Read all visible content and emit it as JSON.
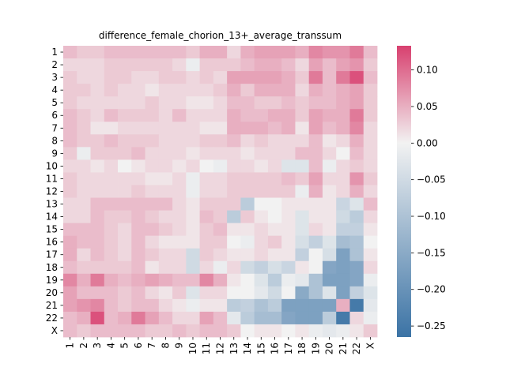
{
  "chart_data": {
    "type": "heatmap",
    "title": "difference_female_chorion_13+_average_transsum",
    "rows": [
      "1",
      "2",
      "3",
      "4",
      "5",
      "6",
      "7",
      "8",
      "9",
      "10",
      "11",
      "12",
      "13",
      "14",
      "15",
      "16",
      "17",
      "18",
      "19",
      "20",
      "21",
      "22",
      "X"
    ],
    "cols": [
      "1",
      "2",
      "3",
      "4",
      "5",
      "6",
      "7",
      "8",
      "9",
      "10",
      "11",
      "12",
      "13",
      "14",
      "15",
      "16",
      "17",
      "18",
      "19",
      "20",
      "21",
      "22",
      "X"
    ],
    "values": [
      [
        0.04,
        0.03,
        0.03,
        0.04,
        0.04,
        0.04,
        0.04,
        0.04,
        0.04,
        0.03,
        0.05,
        0.05,
        0.02,
        0.05,
        0.06,
        0.06,
        0.06,
        0.05,
        0.08,
        0.07,
        0.07,
        0.09,
        0.04
      ],
      [
        0.02,
        0.02,
        0.02,
        0.03,
        0.03,
        0.03,
        0.03,
        0.03,
        0.02,
        -0.01,
        0.03,
        0.03,
        0.03,
        0.04,
        0.05,
        0.05,
        0.04,
        0.02,
        0.06,
        0.04,
        0.06,
        0.07,
        0.03
      ],
      [
        0.03,
        0.02,
        0.02,
        0.03,
        0.03,
        0.02,
        0.02,
        0.03,
        0.03,
        0.02,
        0.03,
        0.02,
        0.06,
        0.06,
        0.06,
        0.06,
        0.05,
        0.03,
        0.09,
        0.04,
        0.09,
        0.12,
        0.04
      ],
      [
        0.03,
        0.03,
        0.02,
        0.03,
        0.02,
        0.02,
        0.01,
        0.02,
        0.02,
        0.02,
        0.02,
        0.03,
        0.05,
        0.03,
        0.05,
        0.05,
        0.05,
        0.02,
        0.05,
        0.04,
        0.05,
        0.06,
        0.03
      ],
      [
        0.03,
        0.02,
        0.02,
        0.02,
        0.02,
        0.02,
        0.03,
        0.02,
        0.02,
        0.01,
        0.01,
        0.02,
        0.04,
        0.04,
        0.03,
        0.03,
        0.04,
        0.03,
        0.04,
        0.04,
        0.05,
        0.06,
        0.03
      ],
      [
        0.04,
        0.03,
        0.02,
        0.04,
        0.03,
        0.03,
        0.03,
        0.02,
        0.04,
        0.02,
        0.02,
        0.02,
        0.05,
        0.04,
        0.04,
        0.05,
        0.05,
        0.03,
        0.06,
        0.05,
        0.05,
        0.09,
        0.03
      ],
      [
        0.04,
        0.03,
        0.01,
        0.01,
        0.02,
        0.02,
        0.02,
        0.02,
        0.02,
        0.02,
        0.01,
        0.01,
        0.05,
        0.05,
        0.05,
        0.04,
        0.05,
        0.01,
        0.06,
        0.04,
        0.05,
        0.08,
        0.02
      ],
      [
        0.04,
        0.03,
        0.03,
        0.04,
        0.03,
        0.03,
        0.03,
        0.02,
        0.02,
        0.02,
        0.03,
        0.03,
        0.04,
        0.02,
        0.03,
        0.02,
        0.02,
        0.02,
        0.04,
        0.01,
        0.02,
        0.05,
        0.02
      ],
      [
        0.03,
        -0.01,
        0.03,
        0.03,
        0.03,
        0.04,
        0.02,
        0.02,
        0.02,
        0.01,
        0.02,
        0.02,
        0.02,
        0.01,
        0.02,
        0.02,
        0.02,
        0.04,
        0.04,
        0.02,
        0.0,
        0.04,
        0.02
      ],
      [
        0.02,
        0.02,
        0.01,
        0.02,
        0.0,
        0.01,
        0.02,
        0.02,
        0.01,
        0.02,
        0.0,
        -0.01,
        0.02,
        0.02,
        0.01,
        0.02,
        -0.03,
        -0.03,
        0.04,
        -0.01,
        0.02,
        0.03,
        0.02
      ],
      [
        0.03,
        0.02,
        0.02,
        0.02,
        0.02,
        0.02,
        0.01,
        0.01,
        0.02,
        -0.01,
        0.02,
        0.02,
        0.03,
        0.03,
        0.03,
        0.03,
        0.04,
        0.03,
        0.06,
        0.02,
        0.02,
        0.07,
        0.03
      ],
      [
        0.03,
        0.02,
        0.02,
        0.02,
        0.02,
        0.03,
        0.02,
        0.02,
        0.02,
        -0.01,
        0.02,
        0.02,
        0.03,
        0.03,
        0.03,
        0.03,
        0.03,
        -0.01,
        0.05,
        0.01,
        0.02,
        0.05,
        0.02
      ],
      [
        0.02,
        0.02,
        0.04,
        0.04,
        0.04,
        0.04,
        0.04,
        0.04,
        0.02,
        0.01,
        0.03,
        0.03,
        0.03,
        -0.08,
        0.0,
        0.0,
        0.01,
        0.01,
        0.01,
        0.01,
        -0.06,
        -0.03,
        0.04
      ],
      [
        0.02,
        0.02,
        0.04,
        0.03,
        0.03,
        0.04,
        0.03,
        0.02,
        0.02,
        0.01,
        0.04,
        0.03,
        -0.08,
        0.03,
        0.01,
        0.0,
        0.01,
        -0.03,
        0.01,
        0.01,
        -0.05,
        -0.08,
        0.02
      ],
      [
        0.04,
        0.04,
        0.04,
        0.03,
        0.02,
        0.04,
        0.04,
        0.03,
        0.02,
        0.01,
        0.03,
        0.04,
        0.01,
        0.01,
        0.02,
        0.01,
        0.01,
        -0.03,
        0.02,
        0.01,
        -0.07,
        -0.07,
        0.01
      ],
      [
        0.05,
        0.04,
        0.04,
        0.03,
        0.02,
        0.04,
        0.02,
        0.01,
        0.01,
        0.01,
        0.03,
        0.03,
        0.0,
        -0.01,
        0.02,
        0.03,
        0.01,
        -0.04,
        -0.07,
        -0.03,
        -0.11,
        -0.1,
        0.0
      ],
      [
        0.05,
        0.02,
        0.04,
        0.03,
        0.02,
        0.04,
        0.03,
        0.02,
        0.02,
        -0.05,
        0.03,
        0.02,
        0.01,
        0.01,
        0.02,
        0.01,
        0.01,
        -0.07,
        0.0,
        -0.04,
        -0.17,
        -0.1,
        0.01
      ],
      [
        0.04,
        0.03,
        0.03,
        0.03,
        0.03,
        0.04,
        0.01,
        0.02,
        0.02,
        -0.05,
        0.02,
        -0.01,
        0.02,
        -0.05,
        -0.07,
        -0.04,
        -0.06,
        0.01,
        0.0,
        -0.16,
        -0.17,
        -0.16,
        0.02
      ],
      [
        0.08,
        0.05,
        0.09,
        0.05,
        0.04,
        0.05,
        0.06,
        0.05,
        0.04,
        0.04,
        0.08,
        0.05,
        0.01,
        0.0,
        -0.03,
        -0.08,
        -0.01,
        -0.02,
        -0.1,
        -0.17,
        -0.17,
        -0.16,
        -0.01
      ],
      [
        0.06,
        0.04,
        0.04,
        0.04,
        0.03,
        0.04,
        0.02,
        0.01,
        0.03,
        -0.03,
        0.02,
        0.02,
        0.0,
        0.0,
        -0.02,
        -0.05,
        0.0,
        -0.15,
        -0.1,
        -0.03,
        -0.17,
        -0.07,
        -0.03
      ],
      [
        0.06,
        0.07,
        0.08,
        0.04,
        0.03,
        0.04,
        0.04,
        0.02,
        0.01,
        -0.01,
        0.01,
        0.01,
        -0.08,
        -0.07,
        -0.1,
        -0.08,
        -0.17,
        -0.17,
        -0.17,
        -0.17,
        0.05,
        -0.25,
        -0.02
      ],
      [
        0.04,
        0.05,
        0.12,
        0.04,
        0.05,
        0.09,
        0.06,
        0.04,
        0.02,
        0.02,
        0.06,
        0.04,
        -0.02,
        -0.08,
        -0.11,
        -0.11,
        -0.16,
        -0.17,
        -0.17,
        -0.08,
        -0.25,
        0.02,
        -0.01
      ],
      [
        0.04,
        0.03,
        0.04,
        0.04,
        0.04,
        0.04,
        0.03,
        0.03,
        0.04,
        0.03,
        0.04,
        0.04,
        0.03,
        0.0,
        0.01,
        0.01,
        0.0,
        0.01,
        -0.01,
        -0.02,
        -0.01,
        0.01,
        0.03
      ]
    ],
    "vmin": -0.265,
    "vmax": 0.133,
    "colorbar_ticks": [
      0.1,
      0.05,
      0.0,
      -0.05,
      -0.1,
      -0.15,
      -0.2,
      -0.25
    ],
    "colorbar_tick_labels": [
      "0.10",
      "0.05",
      "0.00",
      "−0.05",
      "−0.10",
      "−0.15",
      "−0.20",
      "−0.25"
    ],
    "colors": {
      "low": "#3b73a5",
      "mid": "#f2f2f2",
      "high": "#d8406f"
    }
  }
}
